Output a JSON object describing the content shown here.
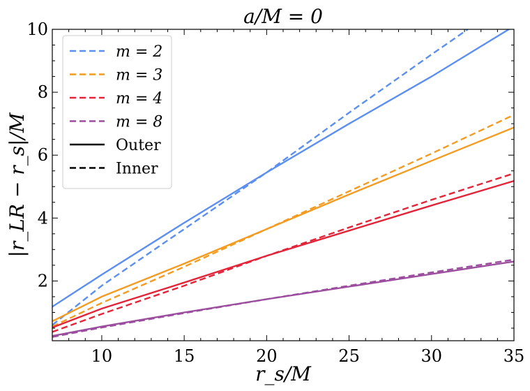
{
  "chart_data": {
    "type": "line",
    "title": "a/M = 0",
    "xlabel": "r_s/M",
    "ylabel": "|r_LR − r_s|/M",
    "xlim": [
      7,
      35
    ],
    "ylim": [
      0.1,
      10
    ],
    "xticks": [
      10,
      15,
      20,
      25,
      30,
      35
    ],
    "yticks": [
      2,
      4,
      6,
      8,
      10
    ],
    "x_tick_labels": [
      "10",
      "15",
      "20",
      "25",
      "30",
      "35"
    ],
    "y_tick_labels": [
      "2",
      "4",
      "6",
      "8",
      "10"
    ],
    "legend_location": "upper-left",
    "series": [
      {
        "name": "m = 2 Outer",
        "m": 2,
        "style": "solid",
        "color": "#5B8FF0",
        "x": [
          7,
          10,
          15,
          20,
          25,
          30,
          35
        ],
        "y": [
          1.18,
          2.2,
          3.85,
          5.45,
          7.0,
          8.5,
          10.1
        ]
      },
      {
        "name": "m = 2 Inner",
        "m": 2,
        "style": "dashed",
        "color": "#5B8FF0",
        "x": [
          7,
          10,
          15,
          20,
          25,
          30,
          32.2
        ],
        "y": [
          0.6,
          1.85,
          3.65,
          5.45,
          7.35,
          9.2,
          10.0
        ]
      },
      {
        "name": "m = 3 Outer",
        "m": 3,
        "style": "solid",
        "color": "#F49C22",
        "x": [
          7,
          10,
          15,
          20,
          25,
          30,
          35
        ],
        "y": [
          0.72,
          1.5,
          2.55,
          3.65,
          4.75,
          5.82,
          6.88
        ]
      },
      {
        "name": "m = 3 Inner",
        "m": 3,
        "style": "dashed",
        "color": "#F49C22",
        "x": [
          7,
          10,
          15,
          20,
          25,
          30,
          35
        ],
        "y": [
          0.55,
          1.3,
          2.45,
          3.65,
          4.85,
          6.05,
          7.28
        ]
      },
      {
        "name": "m = 4 Outer",
        "m": 4,
        "style": "solid",
        "color": "#E3253A",
        "x": [
          7,
          10,
          15,
          20,
          25,
          30,
          35
        ],
        "y": [
          0.52,
          1.12,
          1.95,
          2.8,
          3.6,
          4.4,
          5.18
        ]
      },
      {
        "name": "m = 4 Inner",
        "m": 4,
        "style": "dashed",
        "color": "#E3253A",
        "x": [
          7,
          10,
          15,
          20,
          25,
          30,
          35
        ],
        "y": [
          0.38,
          0.95,
          1.85,
          2.8,
          3.7,
          4.58,
          5.42
        ]
      },
      {
        "name": "m = 8 Outer",
        "m": 8,
        "style": "solid",
        "color": "#9B4E9E",
        "x": [
          7,
          10,
          15,
          20,
          25,
          30,
          35
        ],
        "y": [
          0.25,
          0.55,
          1.0,
          1.42,
          1.82,
          2.22,
          2.62
        ]
      },
      {
        "name": "m = 8 Inner",
        "m": 8,
        "style": "dashed",
        "color": "#9B4E9E",
        "x": [
          7,
          10,
          15,
          20,
          25,
          30,
          35
        ],
        "y": [
          0.22,
          0.52,
          0.98,
          1.42,
          1.85,
          2.27,
          2.68
        ]
      }
    ],
    "legend": [
      {
        "label": "m = 2",
        "style": "dashed",
        "color": "#5B8FF0"
      },
      {
        "label": "m = 3",
        "style": "dashed",
        "color": "#F49C22"
      },
      {
        "label": "m = 4",
        "style": "dashed",
        "color": "#E3253A"
      },
      {
        "label": "m = 8",
        "style": "dashed",
        "color": "#9B4E9E"
      },
      {
        "label": "Outer",
        "style": "solid",
        "color": "#000000"
      },
      {
        "label": "Inner",
        "style": "dashed",
        "color": "#000000"
      }
    ]
  }
}
